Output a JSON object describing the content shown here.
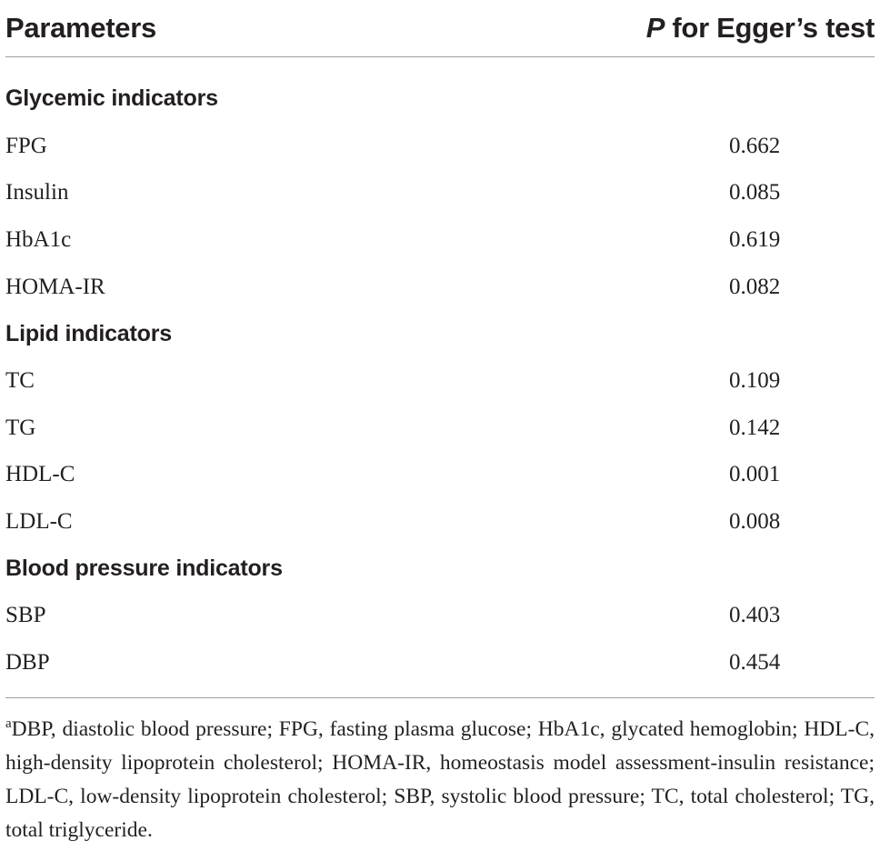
{
  "table": {
    "header": {
      "parameters": "Parameters",
      "p_letter": "P",
      "p_rest": " for Egger’s test"
    },
    "sections": [
      {
        "title": "Glycemic indicators",
        "rows": [
          {
            "name": "FPG",
            "value": "0.662"
          },
          {
            "name": "Insulin",
            "value": "0.085"
          },
          {
            "name": "HbA1c",
            "value": "0.619"
          },
          {
            "name": "HOMA-IR",
            "value": "0.082"
          }
        ]
      },
      {
        "title": "Lipid indicators",
        "rows": [
          {
            "name": "TC",
            "value": "0.109"
          },
          {
            "name": "TG",
            "value": "0.142"
          },
          {
            "name": "HDL-C",
            "value": "0.001"
          },
          {
            "name": "LDL-C",
            "value": "0.008"
          }
        ]
      },
      {
        "title": "Blood pressure indicators",
        "rows": [
          {
            "name": "SBP",
            "value": "0.403"
          },
          {
            "name": "DBP",
            "value": "0.454"
          }
        ]
      }
    ],
    "footnote": {
      "marker": "a",
      "text": "DBP, diastolic blood pressure; FPG, fasting plasma glucose; HbA1c, glycated hemoglobin; HDL-C, high-density lipoprotein cholesterol; HOMA-IR, homeostasis model assessment-insulin resistance; LDL-C, low-density lipoprotein cholesterol; SBP, systolic blood pressure; TC, total cholesterol; TG, total triglyceride."
    }
  }
}
